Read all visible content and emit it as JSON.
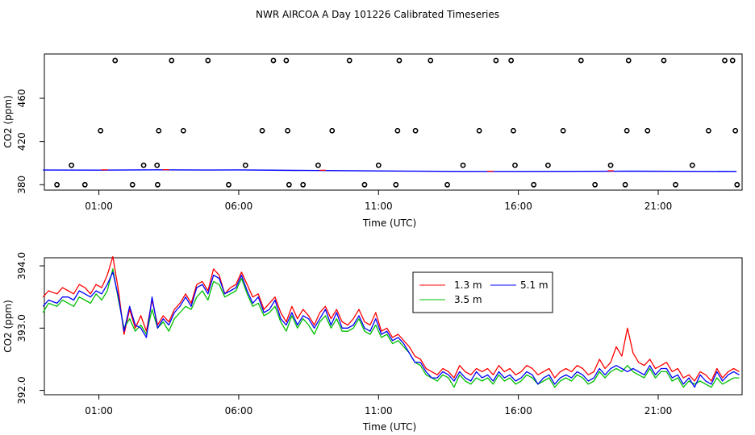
{
  "title": "NWR AIRCOA A  Day 101226  Calibrated Timeseries",
  "colors": {
    "red": "#ff0000",
    "green": "#00c000",
    "blue": "#0000ff",
    "black": "#000000"
  },
  "chart_data": [
    {
      "type": "scatter",
      "xlabel": "Time (UTC)",
      "ylabel": "CO2 (ppm)",
      "xticks": [
        "01:00",
        "06:00",
        "11:00",
        "16:00",
        "21:00"
      ],
      "xtick_hours": [
        1,
        6,
        11,
        16,
        21
      ],
      "xlim": [
        -0.95,
        24.0
      ],
      "yticks": [
        "380",
        "420",
        "460"
      ],
      "ytick_values": [
        380,
        420,
        460
      ],
      "ylim": [
        375,
        501
      ],
      "series": [
        {
          "color": "#000000",
          "x": [
            -0.5,
            0.02,
            0.5,
            1.06,
            1.58,
            2.2,
            2.6,
            3.08,
            3.1,
            3.14,
            3.6,
            4.02,
            4.9,
            5.64,
            6.24,
            6.84,
            7.24,
            7.7,
            7.75,
            7.8,
            8.3,
            8.84,
            9.34,
            9.96,
            10.5,
            11.0,
            11.62,
            11.68,
            11.74,
            12.32,
            12.86,
            13.46,
            14.02,
            14.6,
            15.2,
            15.74,
            15.82,
            15.88,
            16.55,
            17.06,
            17.6,
            18.24,
            18.74,
            19.3,
            19.82,
            19.88,
            19.94,
            20.62,
            21.2,
            21.62,
            22.22,
            22.8,
            23.38,
            23.66,
            23.76,
            23.82
          ],
          "y": [
            380,
            398,
            380,
            430,
            495,
            380,
            398,
            398,
            380,
            430,
            495,
            430,
            495,
            380,
            398,
            430,
            495,
            495,
            430,
            380,
            380,
            398,
            430,
            495,
            380,
            398,
            380,
            430,
            495,
            430,
            495,
            380,
            398,
            430,
            495,
            495,
            430,
            398,
            380,
            398,
            430,
            495,
            380,
            398,
            380,
            430,
            495,
            430,
            495,
            380,
            398,
            430,
            495,
            495,
            430,
            380
          ]
        },
        {
          "color": "#0000ff",
          "x": [
            -1.0,
            1.0,
            3.0,
            5.0,
            6.0,
            8.0,
            10.0,
            12.0,
            14.0,
            16.0,
            18.0,
            20.0,
            22.0,
            23.8
          ],
          "y": [
            393.6,
            393.5,
            393.8,
            393.6,
            393.7,
            393.3,
            393.0,
            392.6,
            392.3,
            392.3,
            392.4,
            392.5,
            392.4,
            392.3
          ]
        },
        {
          "color": "#ff0000",
          "x": [
            1.2,
            3.4,
            9.0,
            15.0,
            19.3
          ],
          "y": [
            393.8,
            393.9,
            393.4,
            392.5,
            392.9
          ]
        }
      ]
    },
    {
      "type": "line",
      "xlabel": "Time (UTC)",
      "ylabel": "CO2 (ppm)",
      "xticks": [
        "01:00",
        "06:00",
        "11:00",
        "16:00",
        "21:00"
      ],
      "xtick_hours": [
        1,
        6,
        11,
        16,
        21
      ],
      "xlim": [
        -0.95,
        24.0
      ],
      "yticks": [
        "392.0",
        "393.0",
        "394.0"
      ],
      "ytick_values": [
        392.0,
        393.0,
        394.0
      ],
      "ylim": [
        391.93,
        394.13
      ],
      "legend": [
        "1.3 m",
        "3.5 m",
        "5.1 m"
      ],
      "legend_position": "top-right",
      "series": [
        {
          "name": "1.3 m",
          "color": "#ff0000",
          "x": [
            -1.0,
            -0.8,
            -0.5,
            -0.3,
            -0.1,
            0.1,
            0.3,
            0.5,
            0.7,
            0.9,
            1.1,
            1.3,
            1.5,
            1.7,
            1.9,
            2.1,
            2.3,
            2.5,
            2.7,
            2.9,
            3.1,
            3.3,
            3.5,
            3.7,
            3.9,
            4.1,
            4.3,
            4.5,
            4.7,
            4.9,
            5.1,
            5.3,
            5.5,
            5.7,
            5.9,
            6.1,
            6.3,
            6.5,
            6.7,
            6.9,
            7.1,
            7.3,
            7.5,
            7.7,
            7.9,
            8.1,
            8.3,
            8.5,
            8.7,
            8.9,
            9.1,
            9.3,
            9.5,
            9.7,
            9.9,
            10.1,
            10.3,
            10.5,
            10.7,
            10.9,
            11.1,
            11.3,
            11.5,
            11.7,
            11.9,
            12.1,
            12.3,
            12.5,
            12.7,
            12.9,
            13.1,
            13.3,
            13.5,
            13.7,
            13.9,
            14.1,
            14.3,
            14.5,
            14.7,
            14.9,
            15.1,
            15.3,
            15.5,
            15.7,
            15.9,
            16.1,
            16.3,
            16.5,
            16.7,
            16.9,
            17.1,
            17.3,
            17.5,
            17.7,
            17.9,
            18.1,
            18.3,
            18.5,
            18.7,
            18.9,
            19.1,
            19.3,
            19.5,
            19.7,
            19.9,
            20.1,
            20.3,
            20.5,
            20.7,
            20.9,
            21.1,
            21.3,
            21.5,
            21.7,
            21.9,
            22.1,
            22.3,
            22.5,
            22.7,
            22.9,
            23.1,
            23.3,
            23.5,
            23.7,
            23.9
          ],
          "y": [
            393.5,
            393.6,
            393.55,
            393.65,
            393.6,
            393.55,
            393.7,
            393.65,
            393.55,
            393.7,
            393.65,
            393.85,
            394.15,
            393.6,
            392.9,
            393.3,
            393.0,
            393.2,
            392.95,
            393.45,
            393.05,
            393.2,
            393.1,
            393.3,
            393.4,
            393.55,
            393.4,
            393.7,
            393.75,
            393.6,
            393.95,
            393.85,
            393.55,
            393.65,
            393.7,
            393.9,
            393.7,
            393.5,
            393.55,
            393.3,
            393.4,
            393.5,
            393.25,
            393.1,
            393.35,
            393.15,
            393.3,
            393.2,
            393.05,
            393.25,
            393.35,
            393.15,
            393.3,
            393.1,
            393.05,
            393.15,
            393.3,
            393.1,
            393.05,
            393.25,
            392.95,
            393.0,
            392.85,
            392.9,
            392.8,
            392.7,
            392.55,
            392.5,
            392.35,
            392.3,
            392.25,
            392.35,
            392.3,
            392.2,
            392.4,
            392.3,
            392.25,
            392.35,
            392.3,
            392.35,
            392.25,
            392.4,
            392.3,
            392.35,
            392.25,
            392.3,
            392.4,
            392.35,
            392.25,
            392.3,
            392.35,
            392.2,
            392.3,
            392.35,
            392.3,
            392.4,
            392.35,
            392.25,
            392.3,
            392.5,
            392.35,
            392.45,
            392.7,
            392.55,
            393.0,
            392.6,
            392.45,
            392.4,
            392.5,
            392.35,
            392.4,
            392.45,
            392.3,
            392.35,
            392.2,
            392.25,
            392.15,
            392.3,
            392.25,
            392.15,
            392.35,
            392.2,
            392.3,
            392.35,
            392.3
          ]
        },
        {
          "name": "3.5 m",
          "color": "#00c000",
          "x": [
            -1.0,
            -0.8,
            -0.5,
            -0.3,
            -0.1,
            0.1,
            0.3,
            0.5,
            0.7,
            0.9,
            1.1,
            1.3,
            1.5,
            1.7,
            1.9,
            2.1,
            2.3,
            2.5,
            2.7,
            2.9,
            3.1,
            3.3,
            3.5,
            3.7,
            3.9,
            4.1,
            4.3,
            4.5,
            4.7,
            4.9,
            5.1,
            5.3,
            5.5,
            5.7,
            5.9,
            6.1,
            6.3,
            6.5,
            6.7,
            6.9,
            7.1,
            7.3,
            7.5,
            7.7,
            7.9,
            8.1,
            8.3,
            8.5,
            8.7,
            8.9,
            9.1,
            9.3,
            9.5,
            9.7,
            9.9,
            10.1,
            10.3,
            10.5,
            10.7,
            10.9,
            11.1,
            11.3,
            11.5,
            11.7,
            11.9,
            12.1,
            12.3,
            12.5,
            12.7,
            12.9,
            13.1,
            13.3,
            13.5,
            13.7,
            13.9,
            14.1,
            14.3,
            14.5,
            14.7,
            14.9,
            15.1,
            15.3,
            15.5,
            15.7,
            15.9,
            16.1,
            16.3,
            16.5,
            16.7,
            16.9,
            17.1,
            17.3,
            17.5,
            17.7,
            17.9,
            18.1,
            18.3,
            18.5,
            18.7,
            18.9,
            19.1,
            19.3,
            19.5,
            19.7,
            19.9,
            20.1,
            20.3,
            20.5,
            20.7,
            20.9,
            21.1,
            21.3,
            21.5,
            21.7,
            21.9,
            22.1,
            22.3,
            22.5,
            22.7,
            22.9,
            23.1,
            23.3,
            23.5,
            23.7,
            23.9
          ],
          "y": [
            393.25,
            393.4,
            393.35,
            393.45,
            393.4,
            393.35,
            393.5,
            393.45,
            393.4,
            393.55,
            393.45,
            393.6,
            393.95,
            393.45,
            393.0,
            393.15,
            392.95,
            393.05,
            392.9,
            393.3,
            393.0,
            393.1,
            392.95,
            393.15,
            393.25,
            393.35,
            393.3,
            393.5,
            393.6,
            393.45,
            393.75,
            393.7,
            393.5,
            393.55,
            393.6,
            393.8,
            393.55,
            393.35,
            393.4,
            393.2,
            393.25,
            393.35,
            393.1,
            392.95,
            393.2,
            393.0,
            393.15,
            393.05,
            392.9,
            393.1,
            393.2,
            393.0,
            393.15,
            392.95,
            392.95,
            393.0,
            393.15,
            392.95,
            392.9,
            393.05,
            392.85,
            392.9,
            392.75,
            392.8,
            392.7,
            392.6,
            392.45,
            392.4,
            392.25,
            392.2,
            392.15,
            392.25,
            392.2,
            392.05,
            392.25,
            392.15,
            392.1,
            392.2,
            392.15,
            392.2,
            392.1,
            392.25,
            392.15,
            392.2,
            392.1,
            392.15,
            392.25,
            392.2,
            392.1,
            392.15,
            392.2,
            392.05,
            392.15,
            392.2,
            392.15,
            392.25,
            392.2,
            392.1,
            392.15,
            392.3,
            392.2,
            392.3,
            392.35,
            392.3,
            392.4,
            392.3,
            392.25,
            392.2,
            392.35,
            392.2,
            392.3,
            392.3,
            392.15,
            392.2,
            392.05,
            392.15,
            392.1,
            392.15,
            392.1,
            392.05,
            392.2,
            392.1,
            392.15,
            392.2,
            392.2
          ]
        },
        {
          "name": "5.1 m",
          "color": "#0000ff",
          "x": [
            -1.0,
            -0.8,
            -0.5,
            -0.3,
            -0.1,
            0.1,
            0.3,
            0.5,
            0.7,
            0.9,
            1.1,
            1.3,
            1.5,
            1.7,
            1.9,
            2.1,
            2.3,
            2.5,
            2.7,
            2.9,
            3.1,
            3.3,
            3.5,
            3.7,
            3.9,
            4.1,
            4.3,
            4.5,
            4.7,
            4.9,
            5.1,
            5.3,
            5.5,
            5.7,
            5.9,
            6.1,
            6.3,
            6.5,
            6.7,
            6.9,
            7.1,
            7.3,
            7.5,
            7.7,
            7.9,
            8.1,
            8.3,
            8.5,
            8.7,
            8.9,
            9.1,
            9.3,
            9.5,
            9.7,
            9.9,
            10.1,
            10.3,
            10.5,
            10.7,
            10.9,
            11.1,
            11.3,
            11.5,
            11.7,
            11.9,
            12.1,
            12.3,
            12.5,
            12.7,
            12.9,
            13.1,
            13.3,
            13.5,
            13.7,
            13.9,
            14.1,
            14.3,
            14.5,
            14.7,
            14.9,
            15.1,
            15.3,
            15.5,
            15.7,
            15.9,
            16.1,
            16.3,
            16.5,
            16.7,
            16.9,
            17.1,
            17.3,
            17.5,
            17.7,
            17.9,
            18.1,
            18.3,
            18.5,
            18.7,
            18.9,
            19.1,
            19.3,
            19.5,
            19.7,
            19.9,
            20.1,
            20.3,
            20.5,
            20.7,
            20.9,
            21.1,
            21.3,
            21.5,
            21.7,
            21.9,
            22.1,
            22.3,
            22.5,
            22.7,
            22.9,
            23.1,
            23.3,
            23.5,
            23.7,
            23.9
          ],
          "y": [
            393.35,
            393.45,
            393.4,
            393.5,
            393.5,
            393.45,
            393.6,
            393.55,
            393.5,
            393.6,
            393.55,
            393.7,
            393.9,
            393.5,
            392.95,
            393.35,
            393.05,
            393.0,
            392.85,
            393.5,
            393.0,
            393.15,
            393.05,
            393.25,
            393.35,
            393.5,
            393.35,
            393.65,
            393.7,
            393.55,
            393.85,
            393.8,
            393.55,
            393.6,
            393.65,
            393.85,
            393.6,
            393.4,
            393.5,
            393.25,
            393.3,
            393.45,
            393.15,
            393.05,
            393.25,
            393.05,
            393.2,
            393.15,
            393.0,
            393.15,
            393.3,
            393.05,
            393.25,
            393.0,
            393.0,
            393.05,
            393.2,
            393.0,
            392.95,
            393.15,
            392.9,
            392.95,
            392.8,
            392.85,
            392.75,
            392.6,
            392.45,
            392.45,
            392.3,
            392.2,
            392.2,
            392.3,
            392.25,
            392.15,
            392.3,
            392.2,
            392.15,
            392.3,
            392.2,
            392.25,
            392.15,
            392.3,
            392.2,
            392.25,
            392.15,
            392.2,
            392.3,
            392.25,
            392.1,
            392.2,
            392.25,
            392.1,
            392.2,
            392.25,
            392.2,
            392.3,
            392.25,
            392.15,
            392.2,
            392.35,
            392.25,
            392.35,
            392.4,
            392.35,
            392.3,
            392.35,
            392.3,
            392.25,
            392.4,
            392.25,
            392.35,
            392.35,
            392.2,
            392.25,
            392.1,
            392.2,
            392.05,
            392.25,
            392.15,
            392.1,
            392.3,
            392.15,
            392.25,
            392.3,
            392.25
          ]
        }
      ]
    }
  ]
}
